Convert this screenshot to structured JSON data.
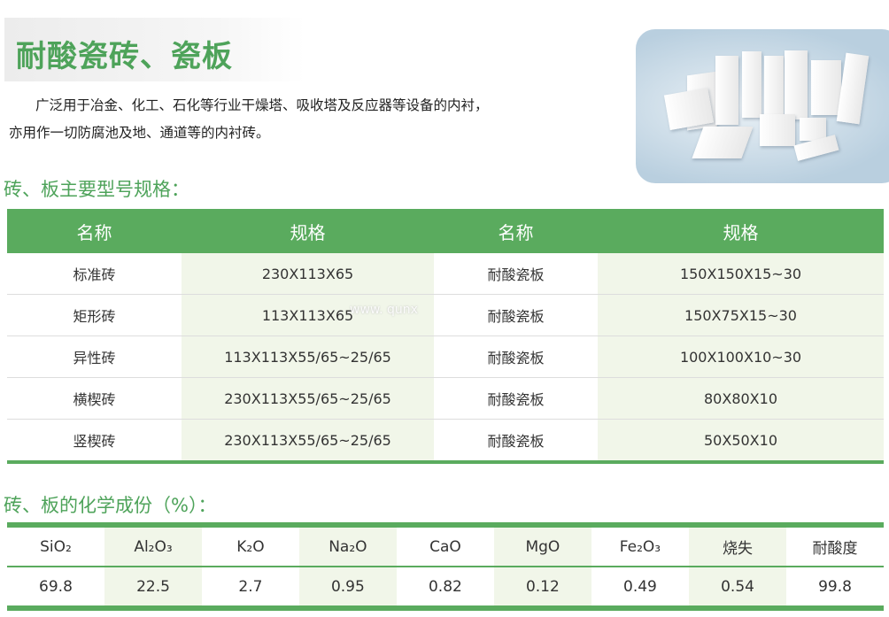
{
  "title": "耐酸瓷砖、瓷板",
  "intro": [
    "广泛用于冶金、化工、石化等行业干燥塔、吸收塔及反应器等设备的内衬，",
    "亦用作一切防腐池及地、通道等的内衬砖。"
  ],
  "spec_section": {
    "heading": "砖、板主要型号规格：",
    "headers": [
      "名称",
      "规格",
      "名称",
      "规格"
    ],
    "rows": [
      [
        "标准砖",
        "230X113X65",
        "耐酸瓷板",
        "150X150X15~30"
      ],
      [
        "矩形砖",
        "113X113X65",
        "耐酸瓷板",
        "150X75X15~30"
      ],
      [
        "异性砖",
        "113X113X55/65~25/65",
        "耐酸瓷板",
        "100X100X10~30"
      ],
      [
        "横楔砖",
        "230X113X55/65~25/65",
        "耐酸瓷板",
        "80X80X10"
      ],
      [
        "竖楔砖",
        "230X113X55/65~25/65",
        "耐酸瓷板",
        "50X50X10"
      ]
    ]
  },
  "watermark": "www. qunx",
  "chem_section": {
    "heading": "砖、板的化学成份（%）：",
    "headers": [
      "SiO₂",
      "Al₂O₃",
      "K₂O",
      "Na₂O",
      "CaO",
      "MgO",
      "Fe₂O₃",
      "烧失",
      "耐酸度"
    ],
    "values": [
      "69.8",
      "22.5",
      "2.7",
      "0.95",
      "0.82",
      "0.12",
      "0.49",
      "0.54",
      "99.8"
    ]
  },
  "colors": {
    "accent": "#5aab5e",
    "shade": "#f1f6e9"
  }
}
